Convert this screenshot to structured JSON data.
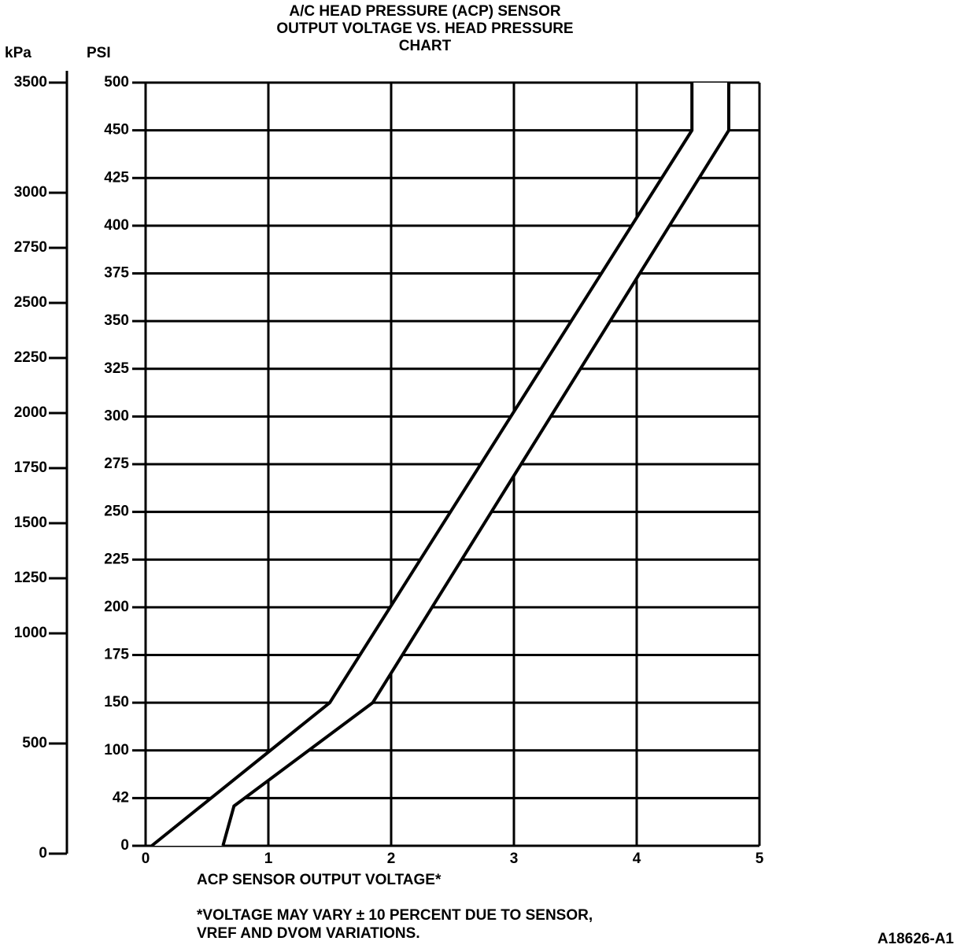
{
  "chart_data": {
    "type": "band",
    "title": [
      "A/C HEAD PRESSURE (ACP) SENSOR",
      "OUTPUT VOLTAGE VS. HEAD PRESSURE",
      "CHART"
    ],
    "ylabel": "PSI",
    "y2label": "kPa",
    "xlabel": "ACP SENSOR OUTPUT VOLTAGE*",
    "footnote": [
      "*VOLTAGE MAY VARY ± 10 PERCENT DUE TO SENSOR,",
      "VREF AND DVOM VARIATIONS."
    ],
    "figure_id": "A18626-A1",
    "xlim": [
      0,
      5
    ],
    "xticks": [
      0,
      1,
      2,
      3,
      4,
      5
    ],
    "ylim": [
      0,
      500
    ],
    "yticks": [
      0,
      42,
      100,
      150,
      175,
      200,
      225,
      250,
      275,
      300,
      325,
      350,
      375,
      400,
      425,
      450,
      500
    ],
    "y2lim": [
      0,
      3500
    ],
    "y2ticks": [
      0,
      500,
      1000,
      1250,
      1500,
      1750,
      2000,
      2250,
      2500,
      2750,
      3000,
      3500
    ],
    "grid": true,
    "series": [
      {
        "x": [
          0.05,
          1.5,
          4.45,
          4.45
        ],
        "values": [
          0,
          150,
          450,
          500
        ],
        "color": "#000000"
      },
      {
        "x": [
          0.63,
          0.72,
          1.85,
          4.75,
          4.75
        ],
        "values": [
          0,
          35,
          150,
          450,
          500
        ],
        "color": "#000000"
      }
    ]
  }
}
